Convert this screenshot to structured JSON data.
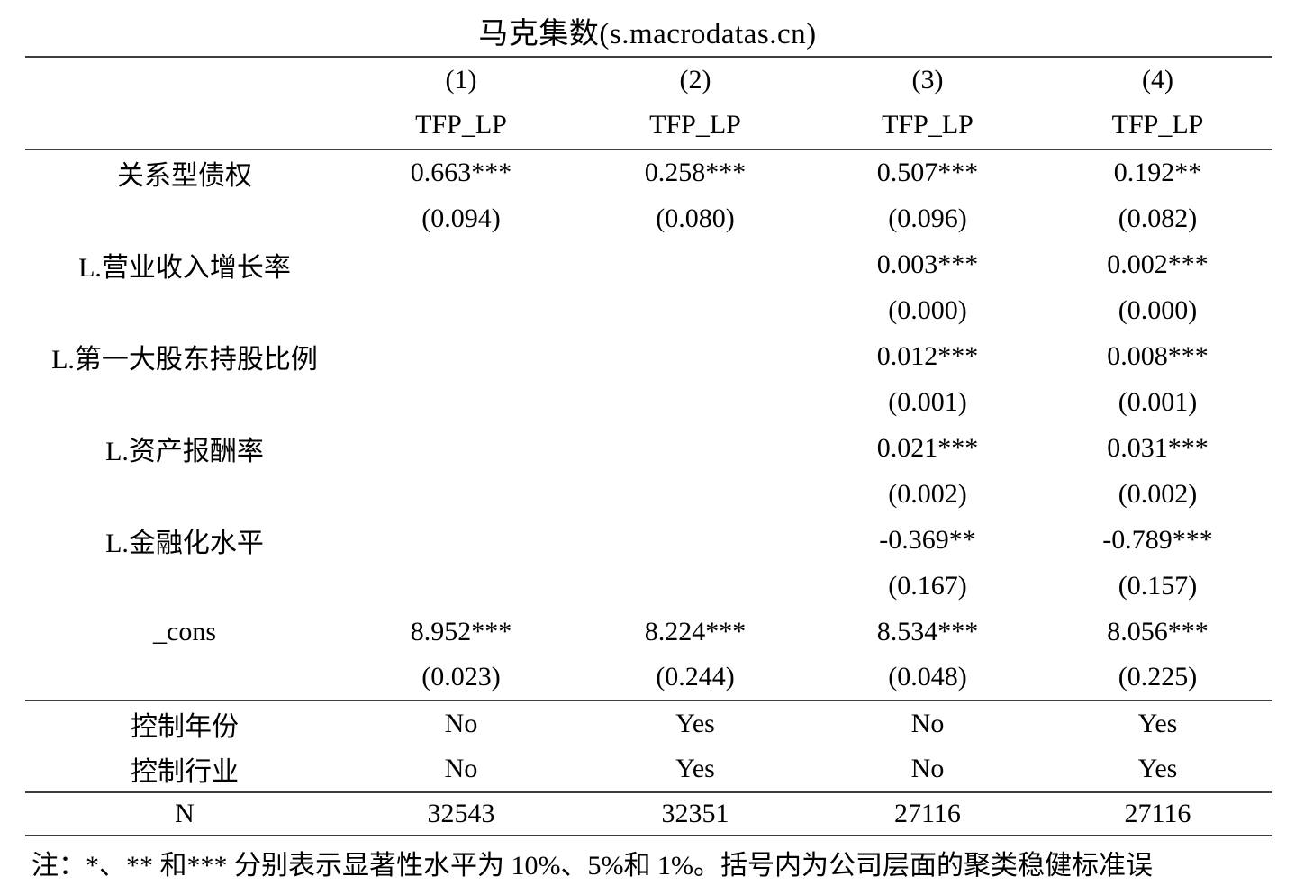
{
  "title": "马克集数(s.macrodatas.cn)",
  "table": {
    "column_numbers": [
      "(1)",
      "(2)",
      "(3)",
      "(4)"
    ],
    "dep_vars": [
      "TFP_LP",
      "TFP_LP",
      "TFP_LP",
      "TFP_LP"
    ],
    "rows": [
      {
        "label": "关系型债权",
        "coefs": [
          "0.663***",
          "0.258***",
          "0.507***",
          "0.192**"
        ],
        "ses": [
          "(0.094)",
          "(0.080)",
          "(0.096)",
          "(0.082)"
        ]
      },
      {
        "label": "L.营业收入增长率",
        "coefs": [
          "",
          "",
          "0.003***",
          "0.002***"
        ],
        "ses": [
          "",
          "",
          "(0.000)",
          "(0.000)"
        ]
      },
      {
        "label": "L.第一大股东持股比例",
        "coefs": [
          "",
          "",
          "0.012***",
          "0.008***"
        ],
        "ses": [
          "",
          "",
          "(0.001)",
          "(0.001)"
        ]
      },
      {
        "label": "L.资产报酬率",
        "coefs": [
          "",
          "",
          "0.021***",
          "0.031***"
        ],
        "ses": [
          "",
          "",
          "(0.002)",
          "(0.002)"
        ]
      },
      {
        "label": "L.金融化水平",
        "coefs": [
          "",
          "",
          "-0.369**",
          "-0.789***"
        ],
        "ses": [
          "",
          "",
          "(0.167)",
          "(0.157)"
        ]
      },
      {
        "label": "_cons",
        "coefs": [
          "8.952***",
          "8.224***",
          "8.534***",
          "8.056***"
        ],
        "ses": [
          "(0.023)",
          "(0.244)",
          "(0.048)",
          "(0.225)"
        ]
      }
    ],
    "controls": [
      {
        "label": "控制年份",
        "values": [
          "No",
          "Yes",
          "No",
          "Yes"
        ]
      },
      {
        "label": "控制行业",
        "values": [
          "No",
          "Yes",
          "No",
          "Yes"
        ]
      }
    ],
    "n_row": {
      "label": "N",
      "values": [
        "32543",
        "32351",
        "27116",
        "27116"
      ]
    }
  },
  "footnote": "注：*、** 和*** 分别表示显著性水平为 10%、5%和 1%。括号内为公司层面的聚类稳健标准误"
}
